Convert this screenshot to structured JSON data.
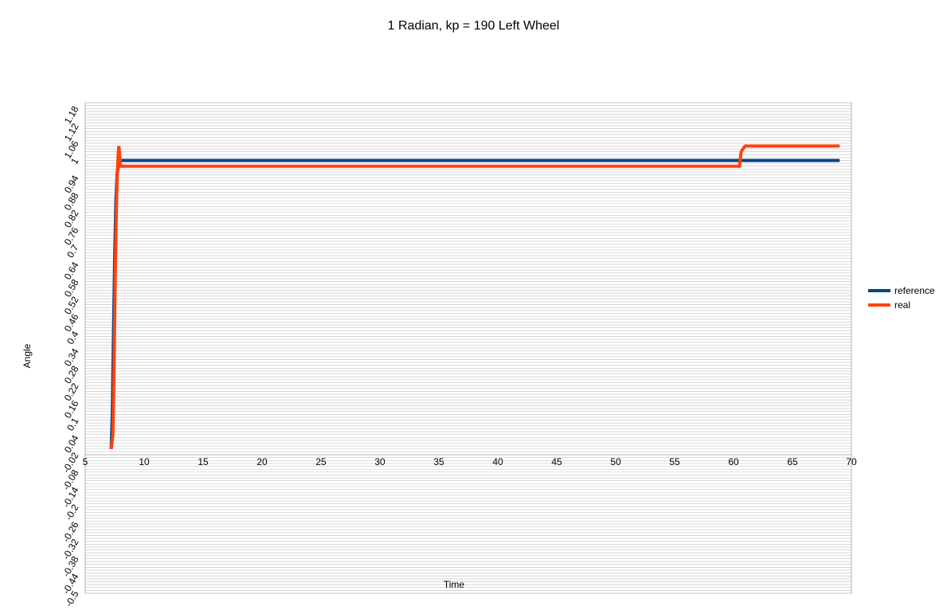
{
  "chart_data": {
    "type": "line",
    "title": "1 Radian, kp = 190 Left Wheel",
    "xlabel": "Time",
    "ylabel": "Angle",
    "xlim": [
      5,
      70
    ],
    "ylim": [
      -0.5,
      1.2
    ],
    "x_ticks": [
      5,
      10,
      15,
      20,
      25,
      30,
      35,
      40,
      45,
      50,
      55,
      60,
      65,
      70
    ],
    "x_tick_labels": [
      "5",
      "10",
      "15",
      "20",
      "25",
      "30",
      "35",
      "40",
      "45",
      "50",
      "55",
      "60",
      "65",
      "70"
    ],
    "y_ticks": [
      -0.5,
      -0.44,
      -0.38,
      -0.32,
      -0.26,
      -0.2,
      -0.14,
      -0.08,
      -0.02,
      0.04,
      0.1,
      0.16,
      0.22,
      0.28,
      0.34,
      0.4,
      0.46,
      0.52,
      0.58,
      0.64,
      0.7,
      0.76,
      0.82,
      0.88,
      0.94,
      1,
      1.06,
      1.12,
      1.18
    ],
    "y_tick_labels": [
      "-0.5",
      "-0.44",
      "-0.38",
      "-0.32",
      "-0.26",
      "-0.2",
      "-0.14",
      "-0.08",
      "-0.02",
      "0.04",
      "0.1",
      "0.16",
      "0.22",
      "0.28",
      "0.34",
      "0.4",
      "0.46",
      "0.52",
      "0.58",
      "0.64",
      "0.7",
      "0.76",
      "0.82",
      "0.88",
      "0.94",
      "1",
      "1.06",
      "1.12",
      "1.18"
    ],
    "grid": true,
    "legend_position": "right",
    "series": [
      {
        "name": "reference",
        "color": "#004586",
        "x": [
          7.2,
          7.3,
          7.4,
          7.5,
          7.6,
          7.7,
          7.8,
          7.9,
          8.0,
          30,
          60.6,
          61.0,
          69.0
        ],
        "y": [
          0.0,
          0.12,
          0.4,
          0.66,
          0.86,
          0.95,
          0.98,
          1.0,
          1.0,
          1.0,
          1.0,
          1.0,
          1.0
        ]
      },
      {
        "name": "real",
        "color": "#ff420e",
        "x": [
          7.2,
          7.35,
          7.45,
          7.55,
          7.65,
          7.72,
          7.8,
          7.85,
          7.9,
          7.95,
          8.0,
          30,
          60.5,
          60.65,
          60.8,
          61.0,
          69.0
        ],
        "y": [
          0.0,
          0.05,
          0.3,
          0.6,
          0.84,
          0.96,
          1.02,
          1.05,
          1.03,
          1.0,
          0.98,
          0.98,
          0.98,
          1.03,
          1.04,
          1.05,
          1.05
        ]
      }
    ]
  }
}
